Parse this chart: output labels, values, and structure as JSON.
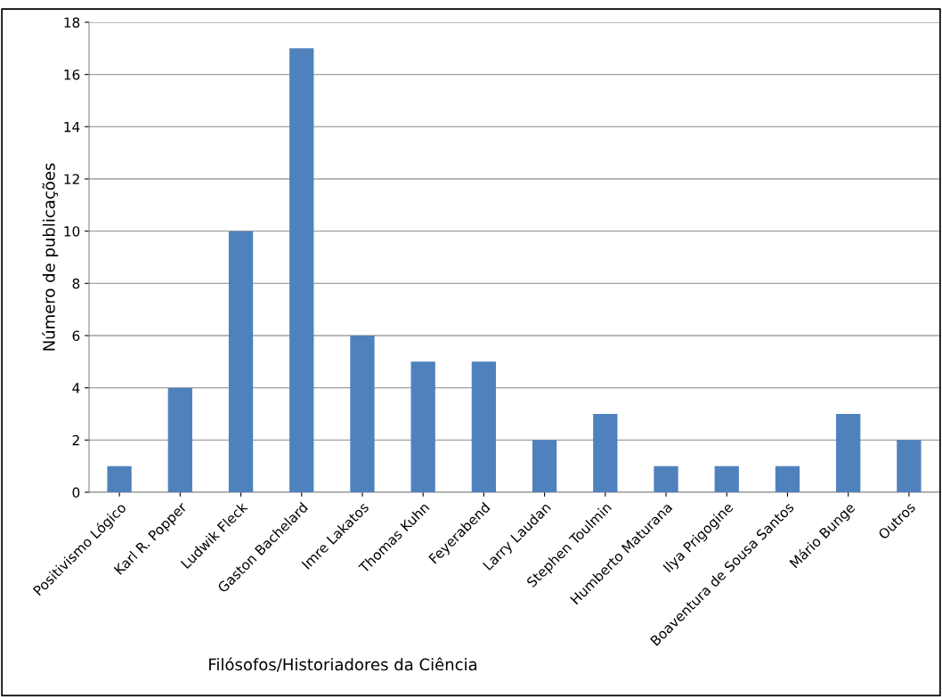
{
  "chart_data": {
    "type": "bar",
    "xlabel": "Filósofos/Historiadores da Ciência",
    "ylabel": "Número de publicações",
    "categories": [
      "Positivismo Lógico",
      "Karl R. Popper",
      "Ludwik Fleck",
      "Gaston Bachelard",
      "Imre Lakatos",
      "Thomas Kuhn",
      "Feyerabend",
      "Larry Laudan",
      "Stephen Toulmin",
      "Humberto Maturana",
      "Ilya Prigogine",
      "Boaventura de Sousa Santos",
      "Mário Bunge",
      "Outros"
    ],
    "values": [
      1,
      4,
      10,
      17,
      6,
      5,
      5,
      2,
      3,
      1,
      1,
      1,
      3,
      2
    ],
    "color": "#4f81bd",
    "ylim": [
      0,
      18
    ],
    "yticks": [
      0,
      2,
      4,
      6,
      8,
      10,
      12,
      14,
      16,
      18
    ],
    "grid": "y",
    "legend": false
  }
}
